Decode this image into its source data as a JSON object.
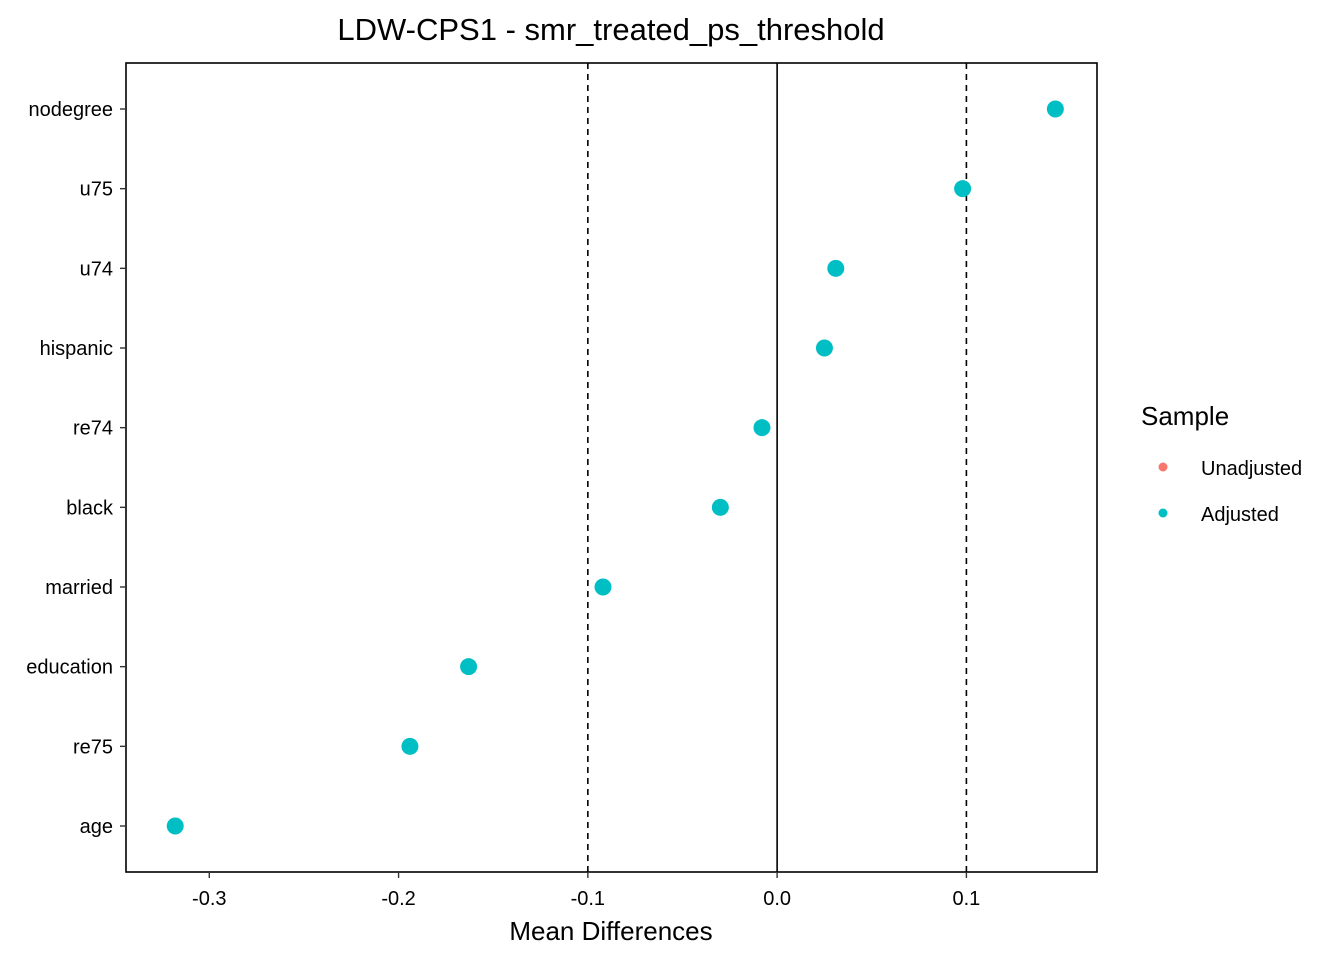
{
  "chart_data": {
    "type": "scatter",
    "title": "LDW-CPS1 - smr_treated_ps_threshold",
    "xlabel": "Mean Differences",
    "ylabel": "",
    "xlim": [
      -0.344,
      0.169
    ],
    "x_ticks": [
      -0.3,
      -0.2,
      -0.1,
      0.0,
      0.1
    ],
    "x_tick_labels": [
      "-0.3",
      "-0.2",
      "-0.1",
      "0.0",
      "0.1"
    ],
    "thresholds": [
      -0.1,
      0.1
    ],
    "zero_line": 0.0,
    "categories": [
      "age",
      "re75",
      "education",
      "married",
      "black",
      "re74",
      "hispanic",
      "u74",
      "u75",
      "nodegree"
    ],
    "series": [
      {
        "name": "Unadjusted",
        "color": "#F8766D",
        "values": []
      },
      {
        "name": "Adjusted",
        "color": "#00BFC4",
        "values": [
          -0.318,
          -0.194,
          -0.163,
          -0.092,
          -0.03,
          -0.008,
          0.025,
          0.031,
          0.098,
          0.147
        ]
      }
    ],
    "legend": {
      "title": "Sample",
      "position": "right",
      "entries": [
        "Unadjusted",
        "Adjusted"
      ]
    },
    "grid": false
  }
}
